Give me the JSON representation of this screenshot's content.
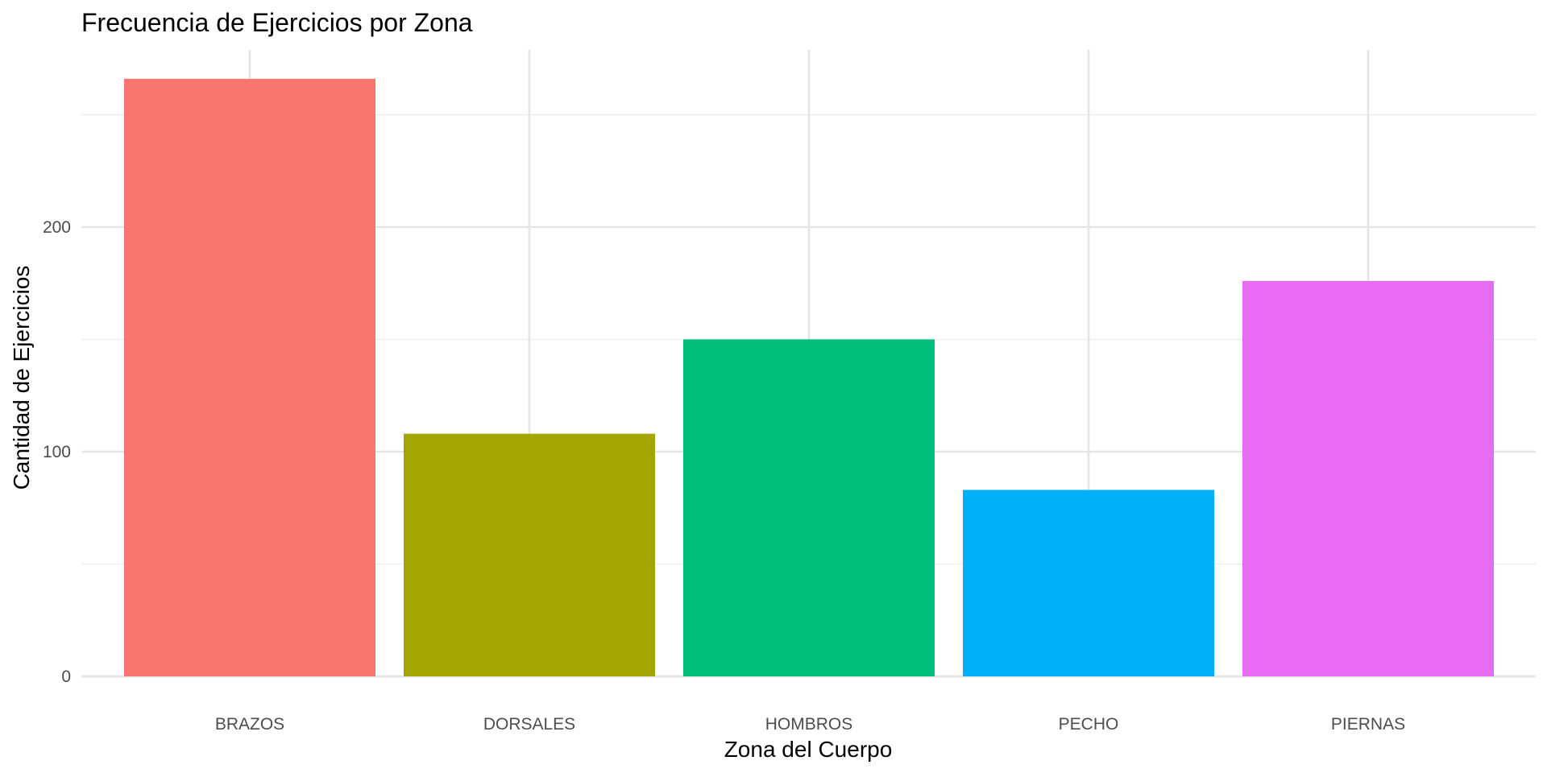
{
  "chart_data": {
    "type": "bar",
    "title": "Frecuencia de Ejercicios por Zona",
    "xlabel": "Zona del Cuerpo",
    "ylabel": "Cantidad de Ejercicios",
    "categories": [
      "BRAZOS",
      "DORSALES",
      "HOMBROS",
      "PECHO",
      "PIERNAS"
    ],
    "values": [
      266,
      108,
      150,
      83,
      176
    ],
    "colors": [
      "#F8766D",
      "#A3A500",
      "#00BF7D",
      "#00B0F6",
      "#E76BF3"
    ],
    "ylim": [
      0,
      280
    ],
    "yticks": [
      0,
      100,
      200
    ],
    "grid": true,
    "legend": "none"
  }
}
